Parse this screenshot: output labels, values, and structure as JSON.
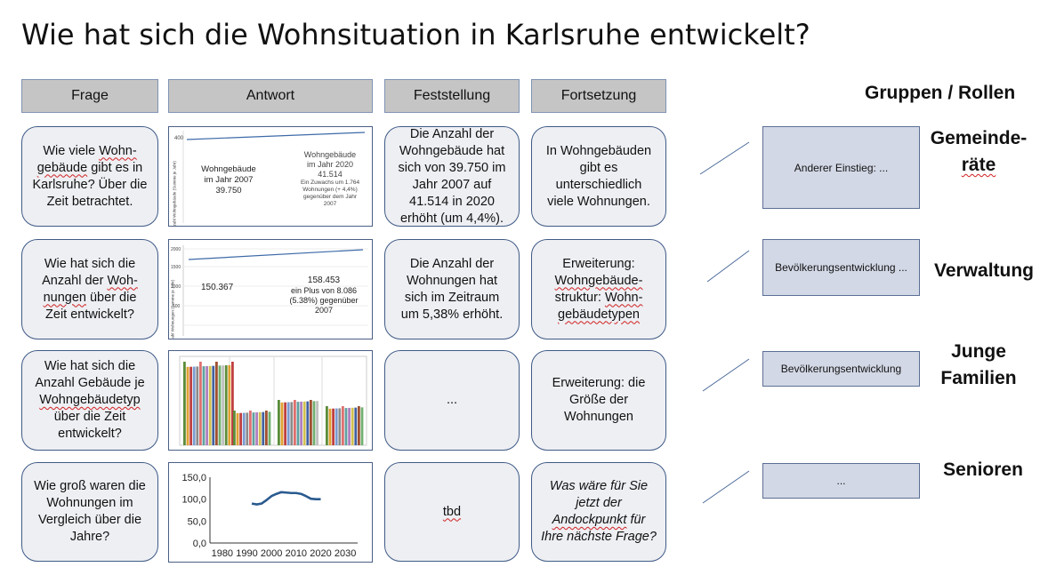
{
  "title": "Wie hat sich die Wohnsituation in Karlsruhe entwickelt?",
  "columns": {
    "frage": "Frage",
    "antwort": "Antwort",
    "feststellung": "Feststellung",
    "fortsetzung": "Fortsetzung"
  },
  "rows": [
    {
      "frage": [
        "Wie viele ",
        "Wohn-",
        "gebäude",
        " gibt es in Karlsruhe? Über die Zeit betrachtet."
      ],
      "antwort": {
        "left_label": "Wohngebäude im Jahr 2007",
        "left_value": "39.750",
        "right_label": "Wohngebäude im Jahr 2020",
        "right_value": "41.514",
        "right_note": "Ein Zuwachs um 1.764 Wohnungen (+ 4,4%) gegenüber dem Jahr 2007",
        "y_tick": "400",
        "axis_caption": "Anzahl Wohngebäude (Summe je Jahr)"
      },
      "feststellung": "Die Anzahl der Wohngebäude hat sich von 39.750 im Jahr 2007 auf 41.514 in 2020 erhöht (um 4,4%).",
      "fortsetzung": "In Wohngebäuden gibt es unterschiedlich viele Wohnungen."
    },
    {
      "frage": [
        "Wie hat sich die Anzahl der ",
        "Woh-",
        " ",
        "nungen",
        " über die Zeit entwickelt?"
      ],
      "antwort": {
        "left_value": "150.367",
        "right_value": "158.453",
        "right_note": "ein Plus  von 8.086 (5.38%) gegenüber 2007",
        "y_ticks": [
          "2000",
          "1500",
          "1000",
          "500"
        ],
        "axis_caption": "Anzahl Wohnungen (Summe je Jahr)"
      },
      "feststellung": "Die Anzahl der Wohnungen hat sich im Zeitraum um 5,38% erhöht.",
      "fortsetzung": [
        "Erweiterung: ",
        "Wohngebäude-",
        " struktur: ",
        "Wohn-",
        " ",
        "gebäudetypen"
      ]
    },
    {
      "frage": [
        "Wie hat sich die Anzahl Gebäude je ",
        "Wohngebäudetyp",
        " über die Zeit entwickelt?"
      ],
      "antwort": {},
      "feststellung": "...",
      "fortsetzung": "Erweiterung: die Größe der Wohnungen"
    },
    {
      "frage": [
        "Wie groß waren die Wohnungen im Vergleich über die Jahre?"
      ],
      "antwort": {},
      "feststellung": "tbd",
      "fortsetzung": [
        "Was wäre für Sie jetzt der ",
        "Andockpunkt",
        " für Ihre nächste Frage?"
      ]
    }
  ],
  "chart_data": [
    {
      "type": "line",
      "x": [
        1992,
        1994,
        1996,
        1998,
        2000,
        2002,
        2004,
        2006,
        2008,
        2010,
        2012,
        2014,
        2016,
        2018,
        2020
      ],
      "y": [
        90,
        88,
        90,
        98,
        107,
        112,
        116,
        115,
        114,
        114,
        112,
        107,
        101,
        100,
        100
      ],
      "xlim": [
        1975,
        2035
      ],
      "ylim": [
        0,
        150
      ],
      "xticks": [
        "1980",
        "1990",
        "2000",
        "2010",
        "2020",
        "2030"
      ],
      "yticks": [
        "0,0",
        "50,0",
        "100,0",
        "150,0"
      ],
      "color": "#2a5a8f",
      "title": "",
      "xlabel": "",
      "ylabel": ""
    }
  ],
  "groups": {
    "title": "Gruppen / Rollen",
    "roles": [
      {
        "label_lines": [
          "Gemeinde-",
          "räte"
        ],
        "box": "Anderer Einstieg: ..."
      },
      {
        "label_lines": [
          "Verwaltung"
        ],
        "box": "Bevölkerungsentwicklung ..."
      },
      {
        "label_lines": [
          "Junge",
          "Familien"
        ],
        "box": "Bevölkerungsentwicklung"
      },
      {
        "label_lines": [
          "Senioren"
        ],
        "box": "..."
      }
    ]
  },
  "colors": {
    "header_bg": "#c5c5c5",
    "card_bg": "#eeeff3",
    "card_border": "#3f5a86",
    "role_box_bg": "#d3d8e6",
    "line_color": "#2a5a8f"
  }
}
